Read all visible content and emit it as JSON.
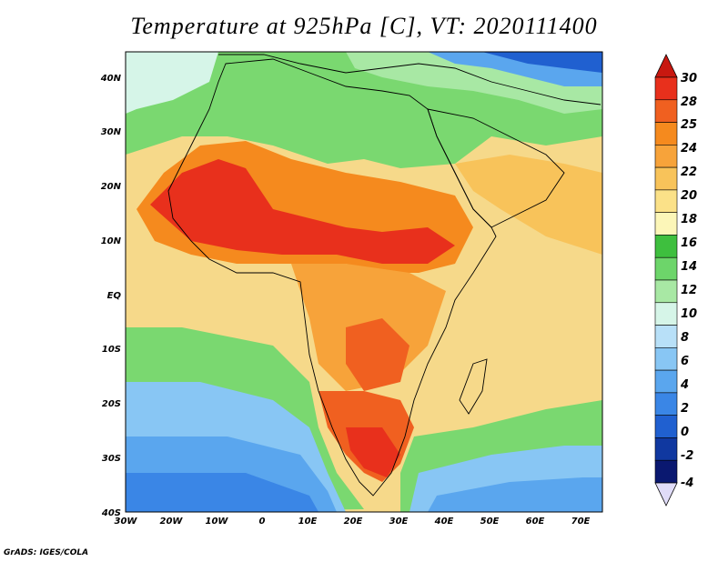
{
  "title": "Temperature at 925hPa [C], VT: 2020111400",
  "credit": "GrADS: IGES/COLA",
  "map": {
    "lon_ticks": [
      "30W",
      "20W",
      "10W",
      "0",
      "10E",
      "20E",
      "30E",
      "40E",
      "50E",
      "60E",
      "70E"
    ],
    "lat_ticks": [
      "40N",
      "30N",
      "20N",
      "10N",
      "EQ",
      "10S",
      "20S",
      "30S",
      "40S"
    ],
    "lon_range": [
      -30,
      75
    ],
    "lat_range": [
      -40,
      45
    ]
  },
  "colorbar": {
    "labels": [
      "30",
      "28",
      "25",
      "24",
      "22",
      "20",
      "18",
      "16",
      "14",
      "12",
      "10",
      "8",
      "6",
      "4",
      "2",
      "0",
      "-2",
      "-4"
    ],
    "colors": [
      "#e8301c",
      "#f06020",
      "#f58a1e",
      "#f7a33a",
      "#f8c35a",
      "#fbe188",
      "#fcf6b8",
      "#3ebf3e",
      "#6dd56a",
      "#a8e8a4",
      "#d6f5e8",
      "#b8e0f8",
      "#88c6f4",
      "#5aa6ee",
      "#3a86e6",
      "#2060d0",
      "#1038a0",
      "#0a1870"
    ],
    "top_arrow_color": "#c81810",
    "bottom_arrow_color": "#e0dcf8"
  }
}
